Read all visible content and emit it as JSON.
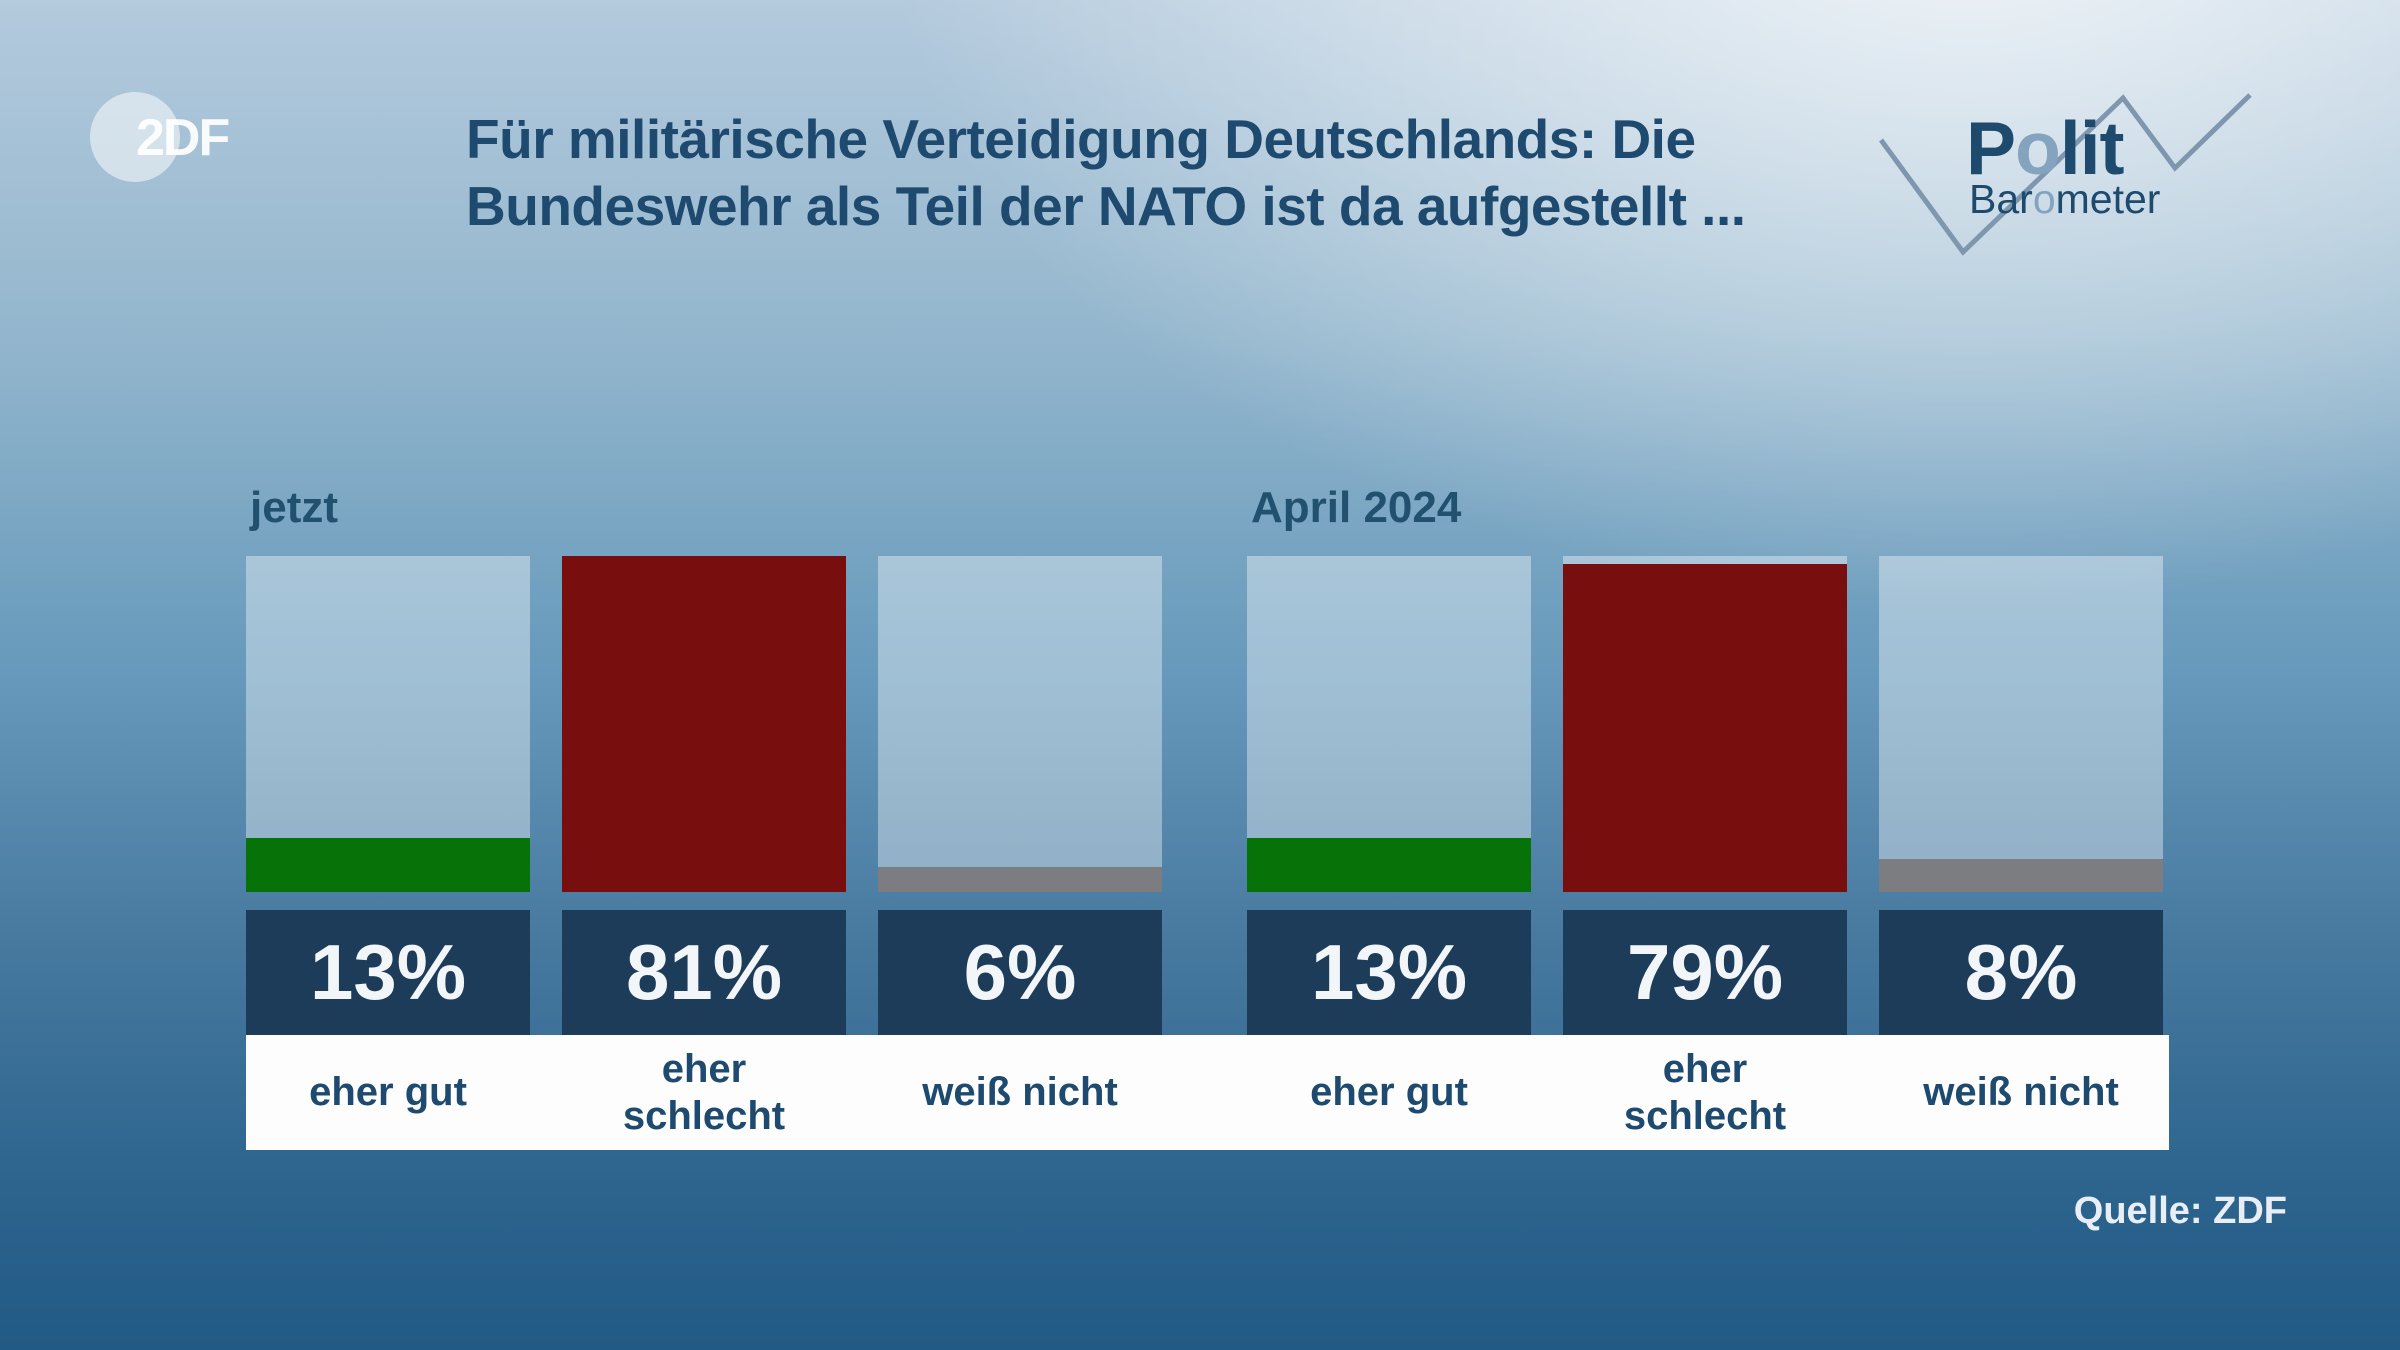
{
  "header": {
    "zdf_logo_text": "2DF",
    "title_line1": "Für militärische Verteidigung Deutschlands: Die",
    "title_line2": "Bundeswehr als Teil der NATO ist da aufgestellt ...",
    "politbarometer": {
      "word1_prefix": "P",
      "word1_accent": "o",
      "word1_suffix": "lit",
      "word2_prefix": "Bar",
      "word2_accent": "o",
      "word2_suffix": "meter"
    }
  },
  "chart_data": {
    "type": "bar",
    "title": "Für militärische Verteidigung Deutschlands: Die Bundeswehr als Teil der NATO ist da aufgestellt ...",
    "unit": "%",
    "categories": [
      "eher gut",
      "eher schlecht",
      "weiß nicht"
    ],
    "groups": [
      {
        "label": "jetzt",
        "values": [
          13,
          81,
          6
        ],
        "value_labels": [
          "13%",
          "81%",
          "6%"
        ]
      },
      {
        "label": "April 2024",
        "values": [
          13,
          79,
          8
        ],
        "value_labels": [
          "13%",
          "79%",
          "8%"
        ]
      }
    ],
    "scale_max": 81,
    "bar_colors": [
      "#077207",
      "#780e0e",
      "#7b7d80"
    ],
    "legend_position": "none",
    "grid": false,
    "source": "Quelle: ZDF"
  },
  "style": {
    "title_color": "#1d4a6e",
    "value_box_color": "#1d3c5a",
    "value_text_color": "#f3f6f9",
    "label_band_color": "#fdfdfe",
    "bar_track_color": "rgba(255,255,255,0.38)",
    "background_top": "#e4eaf0",
    "background_bottom": "#215a84",
    "logo_accent_color": "#84a3bf",
    "zigzag_color": "#7e97ae"
  },
  "footer": {
    "source_label": "Quelle: ZDF"
  }
}
